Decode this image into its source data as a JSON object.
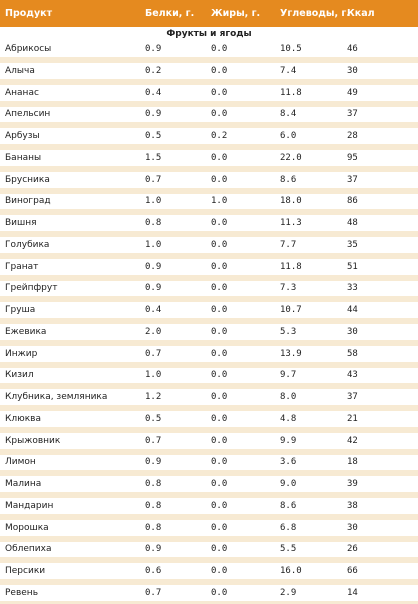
{
  "header": {
    "product": "Продукт",
    "protein": "Белки, г.",
    "fat": "Жиры, г.",
    "carbs": "Углеводы, г.",
    "kcal": "Ккал"
  },
  "section_title": "Фрукты и ягоды",
  "colors": {
    "header_bg": "#e58a1f",
    "header_text": "#ffffff",
    "row_separator": "#f7ead3"
  },
  "rows": [
    {
      "product": "Абрикосы",
      "protein": "0.9",
      "fat": "0.0",
      "carbs": "10.5",
      "kcal": "46"
    },
    {
      "product": "Алыча",
      "protein": "0.2",
      "fat": "0.0",
      "carbs": "7.4",
      "kcal": "30"
    },
    {
      "product": "Ананас",
      "protein": "0.4",
      "fat": "0.0",
      "carbs": "11.8",
      "kcal": "49"
    },
    {
      "product": "Апельсин",
      "protein": "0.9",
      "fat": "0.0",
      "carbs": "8.4",
      "kcal": "37"
    },
    {
      "product": "Арбузы",
      "protein": "0.5",
      "fat": "0.2",
      "carbs": "6.0",
      "kcal": "28"
    },
    {
      "product": "Бананы",
      "protein": "1.5",
      "fat": "0.0",
      "carbs": "22.0",
      "kcal": "95"
    },
    {
      "product": "Брусника",
      "protein": "0.7",
      "fat": "0.0",
      "carbs": "8.6",
      "kcal": "37"
    },
    {
      "product": "Виноград",
      "protein": "1.0",
      "fat": "1.0",
      "carbs": "18.0",
      "kcal": "86"
    },
    {
      "product": "Вишня",
      "protein": "0.8",
      "fat": "0.0",
      "carbs": "11.3",
      "kcal": "48"
    },
    {
      "product": "Голубика",
      "protein": "1.0",
      "fat": "0.0",
      "carbs": "7.7",
      "kcal": "35"
    },
    {
      "product": "Гранат",
      "protein": "0.9",
      "fat": "0.0",
      "carbs": "11.8",
      "kcal": "51"
    },
    {
      "product": "Грейпфрут",
      "protein": "0.9",
      "fat": "0.0",
      "carbs": "7.3",
      "kcal": "33"
    },
    {
      "product": "Груша",
      "protein": "0.4",
      "fat": "0.0",
      "carbs": "10.7",
      "kcal": "44"
    },
    {
      "product": "Ежевика",
      "protein": "2.0",
      "fat": "0.0",
      "carbs": "5.3",
      "kcal": "30"
    },
    {
      "product": "Инжир",
      "protein": "0.7",
      "fat": "0.0",
      "carbs": "13.9",
      "kcal": "58"
    },
    {
      "product": "Кизил",
      "protein": "1.0",
      "fat": "0.0",
      "carbs": "9.7",
      "kcal": "43"
    },
    {
      "product": "Клубника, земляника",
      "protein": "1.2",
      "fat": "0.0",
      "carbs": "8.0",
      "kcal": "37"
    },
    {
      "product": "Клюква",
      "protein": "0.5",
      "fat": "0.0",
      "carbs": "4.8",
      "kcal": "21"
    },
    {
      "product": "Крыжовник",
      "protein": "0.7",
      "fat": "0.0",
      "carbs": "9.9",
      "kcal": "42"
    },
    {
      "product": "Лимон",
      "protein": "0.9",
      "fat": "0.0",
      "carbs": "3.6",
      "kcal": "18"
    },
    {
      "product": "Малина",
      "protein": "0.8",
      "fat": "0.0",
      "carbs": "9.0",
      "kcal": "39"
    },
    {
      "product": "Мандарин",
      "protein": "0.8",
      "fat": "0.0",
      "carbs": "8.6",
      "kcal": "38"
    },
    {
      "product": "Морошка",
      "protein": "0.8",
      "fat": "0.0",
      "carbs": "6.8",
      "kcal": "30"
    },
    {
      "product": "Облепиха",
      "protein": "0.9",
      "fat": "0.0",
      "carbs": "5.5",
      "kcal": "26"
    },
    {
      "product": "Персики",
      "protein": "0.6",
      "fat": "0.0",
      "carbs": "16.0",
      "kcal": "66"
    },
    {
      "product": "Ревень",
      "protein": "0.7",
      "fat": "0.0",
      "carbs": "2.9",
      "kcal": "14"
    }
  ]
}
